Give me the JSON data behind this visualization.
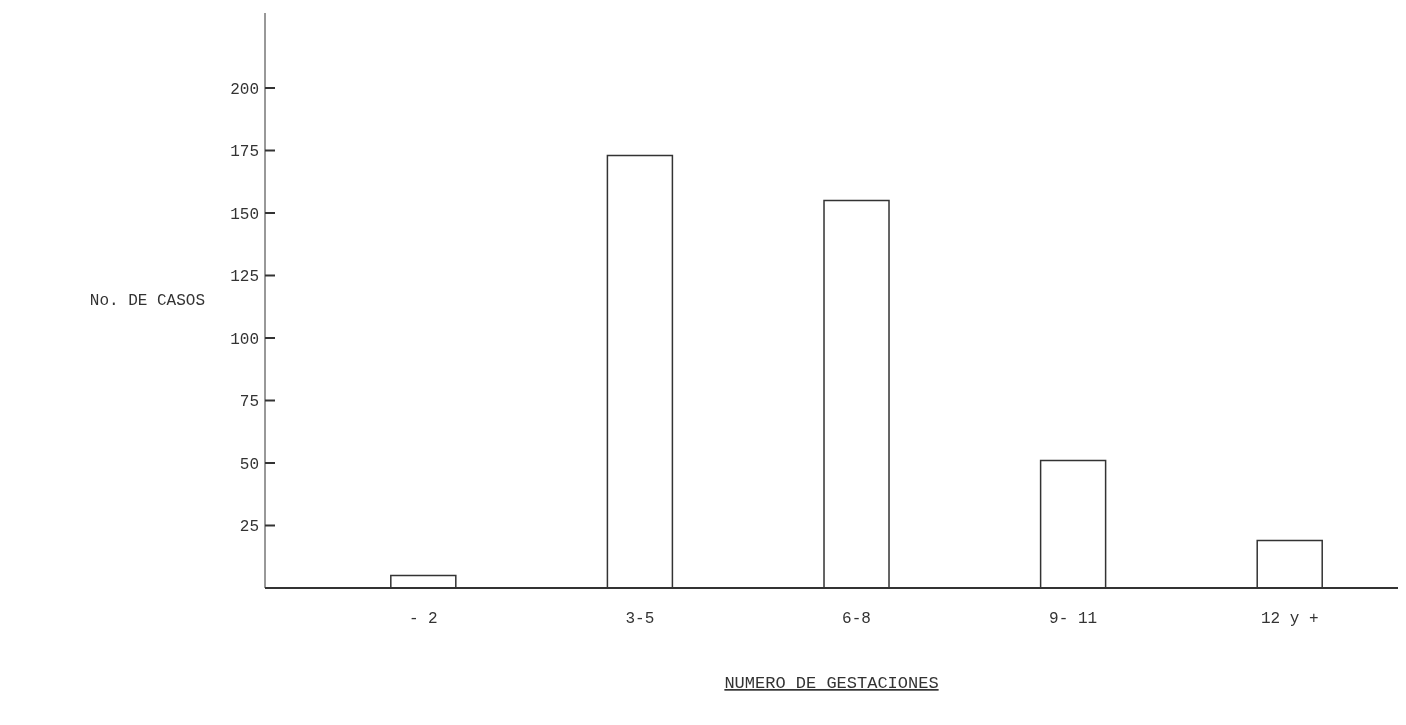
{
  "chart_data": {
    "type": "bar",
    "categories": [
      "- 2",
      "3-5",
      "6-8",
      "9- 11",
      "12 y +"
    ],
    "values": [
      5,
      173,
      155,
      51,
      19
    ],
    "color": "#ffffff",
    "ylim": [
      0,
      230
    ],
    "yticks": [
      {
        "value": 0,
        "label": null
      },
      25,
      50,
      75,
      100,
      125,
      150,
      175,
      200
    ],
    "xlabel": "NUMERO DE GESTACIONES",
    "ylabel": "No. DE CASOS",
    "grid": false,
    "legend": false
  }
}
